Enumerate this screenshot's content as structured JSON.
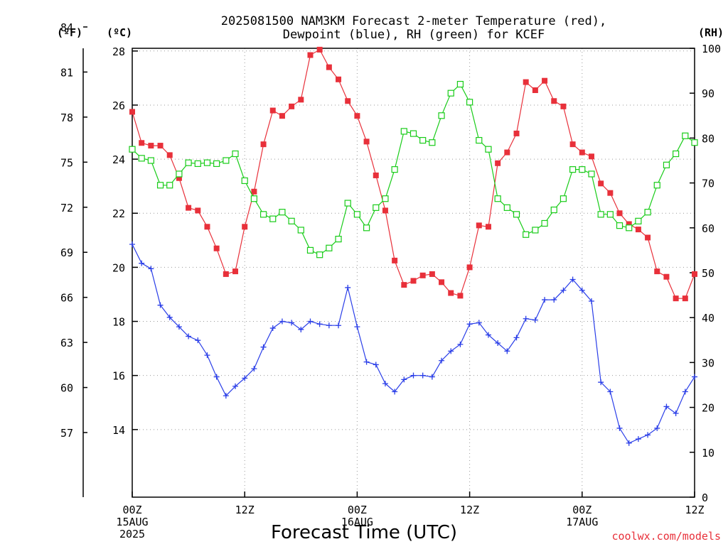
{
  "chart_data": {
    "type": "line",
    "title": "2025081500 NAM3KM Forecast 2-meter Temperature (red),\nDewpoint (blue), RH (green) for KCEF",
    "xlabel": "Forecast Time (UTC)",
    "units": {
      "fahrenheit": "(ºF)",
      "celsius": "(ºC)",
      "rh": "(RH)"
    },
    "credit": "coolwx.com/models",
    "x_range_hours": [
      0,
      60
    ],
    "x_ticks": [
      {
        "hour": 0,
        "labels": [
          "00Z",
          "15AUG",
          "2025"
        ]
      },
      {
        "hour": 12,
        "labels": [
          "12Z"
        ]
      },
      {
        "hour": 24,
        "labels": [
          "00Z",
          "16AUG"
        ]
      },
      {
        "hour": 36,
        "labels": [
          "12Z"
        ]
      },
      {
        "hour": 48,
        "labels": [
          "00Z",
          "17AUG"
        ]
      },
      {
        "hour": 60,
        "labels": [
          "12Z"
        ]
      }
    ],
    "left_axis_celsius": {
      "range": [
        11.5,
        28.1
      ],
      "ticks": [
        14,
        16,
        18,
        20,
        22,
        24,
        26,
        28
      ]
    },
    "left_axis_fahrenheit": {
      "ticks": [
        57,
        60,
        63,
        66,
        69,
        72,
        75,
        78,
        81,
        84
      ]
    },
    "right_axis_rh": {
      "range": [
        0,
        100
      ],
      "ticks": [
        0,
        10,
        20,
        30,
        40,
        50,
        60,
        70,
        80,
        90,
        100
      ]
    },
    "grid": true,
    "colors": {
      "temperature": "#e8303a",
      "dewpoint": "#2a3ee8",
      "rh": "#18cc18"
    },
    "series": [
      {
        "axis": "celsius",
        "marker": "filled-square",
        "x": [
          0,
          1,
          2,
          3,
          4,
          5,
          6,
          7,
          8,
          9,
          10,
          11,
          12,
          13,
          14,
          15,
          16,
          17,
          18,
          19,
          20,
          21,
          22,
          23,
          24,
          25,
          26,
          27,
          28,
          29,
          30,
          31,
          32,
          33,
          34,
          35,
          36,
          37,
          38,
          39,
          40,
          41,
          42,
          43,
          44,
          45,
          46,
          47,
          48,
          49,
          50,
          51,
          52,
          53,
          54,
          55,
          56,
          57,
          58,
          59,
          60
        ],
        "values": [
          25.75,
          24.6,
          24.5,
          24.5,
          24.15,
          23.3,
          22.2,
          22.1,
          21.5,
          20.7,
          19.75,
          19.85,
          21.5,
          22.8,
          24.55,
          25.8,
          25.6,
          25.95,
          26.2,
          27.85,
          28.05,
          27.4,
          26.95,
          26.15,
          25.6,
          24.65,
          23.4,
          22.1,
          20.25,
          19.35,
          19.5,
          19.7,
          19.75,
          19.45,
          19.05,
          18.95,
          20.0,
          21.55,
          21.5,
          23.85,
          24.25,
          24.95,
          26.85,
          26.55,
          26.9,
          26.15,
          25.95,
          24.55,
          24.25,
          24.1,
          23.1,
          22.75,
          22.0,
          21.6,
          21.4,
          21.1,
          19.85,
          19.65,
          18.85,
          18.85,
          19.75
        ]
      },
      {
        "axis": "celsius",
        "marker": "plus",
        "x": [
          0,
          1,
          2,
          3,
          4,
          5,
          6,
          7,
          8,
          9,
          10,
          11,
          12,
          13,
          14,
          15,
          16,
          17,
          18,
          19,
          20,
          21,
          22,
          23,
          24,
          25,
          26,
          27,
          28,
          29,
          30,
          31,
          32,
          33,
          34,
          35,
          36,
          37,
          38,
          39,
          40,
          41,
          42,
          43,
          44,
          45,
          46,
          47,
          48,
          49,
          50,
          51,
          52,
          53,
          54,
          55,
          56,
          57,
          58,
          59,
          60
        ],
        "values": [
          20.85,
          20.15,
          19.95,
          18.6,
          18.15,
          17.8,
          17.45,
          17.3,
          16.75,
          15.95,
          15.25,
          15.6,
          15.9,
          16.25,
          17.05,
          17.75,
          18.0,
          17.95,
          17.7,
          18.0,
          17.9,
          17.85,
          17.85,
          19.25,
          17.8,
          16.5,
          16.4,
          15.7,
          15.4,
          15.85,
          16.0,
          16.0,
          15.95,
          16.55,
          16.9,
          17.15,
          17.9,
          17.95,
          17.5,
          17.2,
          16.9,
          17.4,
          18.1,
          18.05,
          18.8,
          18.8,
          19.15,
          19.55,
          19.15,
          18.75,
          15.75,
          15.4,
          14.05,
          13.5,
          13.65,
          13.8,
          14.05,
          14.85,
          14.6,
          15.4,
          15.95
        ]
      },
      {
        "axis": "rh",
        "marker": "open-square",
        "x": [
          0,
          1,
          2,
          3,
          4,
          5,
          6,
          7,
          8,
          9,
          10,
          11,
          12,
          13,
          14,
          15,
          16,
          17,
          18,
          19,
          20,
          21,
          22,
          23,
          24,
          25,
          26,
          27,
          28,
          29,
          30,
          31,
          32,
          33,
          34,
          35,
          36,
          37,
          38,
          39,
          40,
          41,
          42,
          43,
          44,
          45,
          46,
          47,
          48,
          49,
          50,
          51,
          52,
          53,
          54,
          55,
          56,
          57,
          58,
          59,
          60
        ],
        "values": [
          77.5,
          75.5,
          75.0,
          69.5,
          69.5,
          72.0,
          74.5,
          74.3,
          74.5,
          74.3,
          75.0,
          76.5,
          70.5,
          66.5,
          63.0,
          62.0,
          63.5,
          61.5,
          59.5,
          55.0,
          54.0,
          55.5,
          57.5,
          65.5,
          63.0,
          60.0,
          64.5,
          66.5,
          73.0,
          81.5,
          81.0,
          79.5,
          79.0,
          85.0,
          90.0,
          92.0,
          88.0,
          79.5,
          77.5,
          66.5,
          64.5,
          63.0,
          58.5,
          59.5,
          61.0,
          64.0,
          66.5,
          73.0,
          73.0,
          72.0,
          63.0,
          63.0,
          60.5,
          60.0,
          61.5,
          63.5,
          69.5,
          74.0,
          76.5,
          80.5,
          79.0
        ]
      }
    ]
  }
}
